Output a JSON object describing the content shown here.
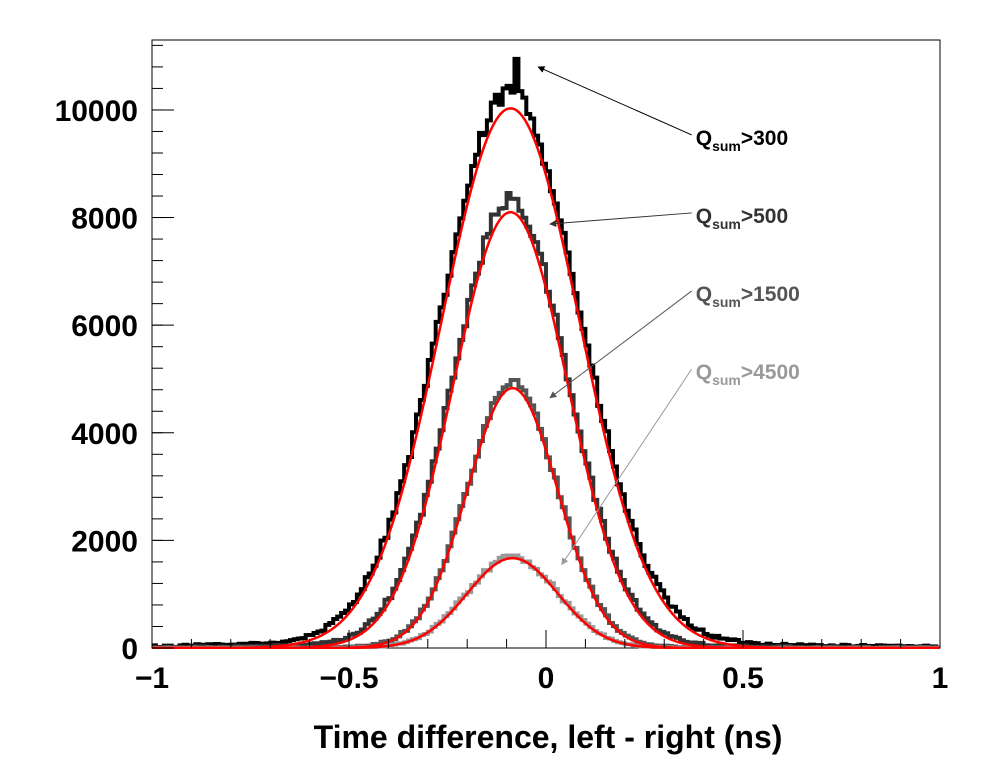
{
  "chart_data": {
    "type": "line",
    "xlabel": "Time difference, left - right (ns)",
    "ylabel": "",
    "xlim": [
      -1,
      1
    ],
    "ylim": [
      0,
      11300
    ],
    "x_ticks": [
      -1,
      -0.5,
      0,
      0.5,
      1
    ],
    "x_tick_labels": [
      "−1",
      "−0.5",
      "0",
      "0.5",
      "1"
    ],
    "y_ticks": [
      0,
      2000,
      4000,
      6000,
      8000,
      10000
    ],
    "y_tick_labels": [
      "0",
      "2000",
      "4000",
      "6000",
      "8000",
      "10000"
    ],
    "grid": false,
    "legend": "none",
    "series": [
      {
        "key": "q300",
        "name": "Q_sum>300",
        "label_main": "Q",
        "label_sub": "sum",
        "label_tail": ">300",
        "style": "step",
        "color": "#000000",
        "peak": 10000,
        "mean": -0.09,
        "sigma": 0.175,
        "peak_observed": 10950,
        "peak_x": -0.075,
        "tail_level": 0.035,
        "tail_width": 0.38,
        "noise": 180
      },
      {
        "key": "q500",
        "name": "Q_sum>500",
        "label_main": "Q",
        "label_sub": "sum",
        "label_tail": ">500",
        "style": "step",
        "color": "#333333",
        "peak": 8100,
        "mean": -0.09,
        "sigma": 0.145,
        "peak_observed": 8350,
        "peak_x": -0.085,
        "tail_level": 0.03,
        "tail_width": 0.3,
        "noise": 140
      },
      {
        "key": "q1500",
        "name": "Q_sum>1500",
        "label_main": "Q",
        "label_sub": "sum",
        "label_tail": ">1500",
        "style": "step",
        "color": "#555555",
        "peak": 4830,
        "mean": -0.085,
        "sigma": 0.115,
        "peak_observed": 4980,
        "peak_x": -0.08,
        "tail_level": 0.02,
        "tail_width": 0.22,
        "noise": 90
      },
      {
        "key": "q4500",
        "name": "Q_sum>4500",
        "label_main": "Q",
        "label_sub": "sum",
        "label_tail": ">4500",
        "style": "step",
        "color": "#999999",
        "peak": 1670,
        "mean": -0.085,
        "sigma": 0.115,
        "peak_observed": 1720,
        "peak_x": -0.08,
        "tail_level": 0.02,
        "tail_width": 0.2,
        "noise": 50
      }
    ],
    "fits": [
      {
        "name": "fit Q_sum>300",
        "type": "gaussian",
        "amplitude": 10030,
        "mean": -0.09,
        "sigma": 0.175,
        "color": "#ff0000"
      },
      {
        "name": "fit Q_sum>500",
        "type": "gaussian",
        "amplitude": 8100,
        "mean": -0.09,
        "sigma": 0.145,
        "color": "#ff0000"
      },
      {
        "name": "fit Q_sum>1500",
        "type": "gaussian",
        "amplitude": 4830,
        "mean": -0.085,
        "sigma": 0.115,
        "color": "#ff0000"
      },
      {
        "name": "fit Q_sum>4500",
        "type": "gaussian",
        "amplitude": 1670,
        "mean": -0.085,
        "sigma": 0.115,
        "color": "#ff0000"
      }
    ],
    "annotations": [
      {
        "series": "q300",
        "text_x": 0.38,
        "text_y": 9350,
        "arrow_to_x": -0.02,
        "arrow_to_y": 10800,
        "color": "#000000"
      },
      {
        "series": "q500",
        "text_x": 0.38,
        "text_y": 7900,
        "arrow_to_x": 0.01,
        "arrow_to_y": 7880,
        "color": "#333333"
      },
      {
        "series": "q1500",
        "text_x": 0.38,
        "text_y": 6450,
        "arrow_to_x": 0.01,
        "arrow_to_y": 4650,
        "color": "#555555"
      },
      {
        "series": "q4500",
        "text_x": 0.38,
        "text_y": 5000,
        "arrow_to_x": 0.04,
        "arrow_to_y": 1550,
        "color": "#999999"
      }
    ]
  }
}
